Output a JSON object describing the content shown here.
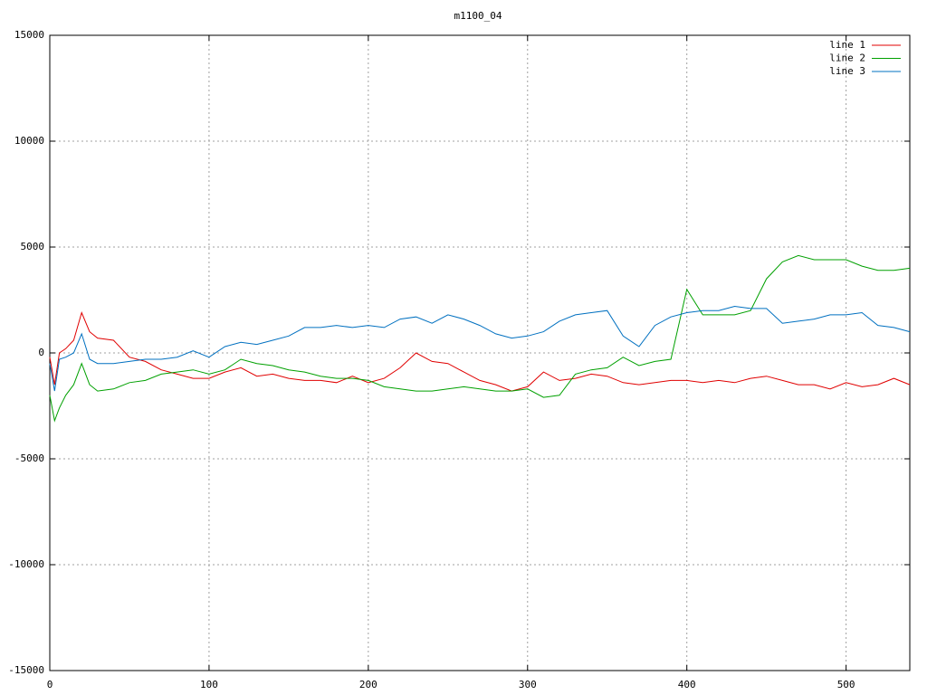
{
  "chart_data": {
    "type": "line",
    "title": "m1100_04",
    "x": [
      0,
      3,
      6,
      10,
      15,
      20,
      25,
      30,
      40,
      50,
      60,
      70,
      80,
      90,
      100,
      110,
      120,
      130,
      140,
      150,
      160,
      170,
      180,
      190,
      200,
      210,
      220,
      230,
      240,
      250,
      260,
      270,
      280,
      290,
      300,
      310,
      320,
      330,
      340,
      350,
      360,
      370,
      380,
      390,
      400,
      410,
      420,
      430,
      440,
      450,
      460,
      470,
      480,
      490,
      500,
      510,
      520,
      530,
      540
    ],
    "xlim": [
      0,
      540
    ],
    "xticks": [
      0,
      100,
      200,
      300,
      400,
      500
    ],
    "ylim": [
      -15000,
      15000
    ],
    "yticks": [
      -15000,
      -10000,
      -5000,
      0,
      5000,
      10000,
      15000
    ],
    "grid": true,
    "legend": "top-right",
    "series": [
      {
        "name": "line 1",
        "color": "#e00000",
        "values": [
          -200,
          -1500,
          0,
          200,
          600,
          1900,
          1000,
          700,
          600,
          -200,
          -400,
          -800,
          -1000,
          -1200,
          -1200,
          -900,
          -700,
          -1100,
          -1000,
          -1200,
          -1300,
          -1300,
          -1400,
          -1100,
          -1400,
          -1200,
          -700,
          0,
          -400,
          -500,
          -900,
          -1300,
          -1500,
          -1800,
          -1600,
          -900,
          -1300,
          -1200,
          -1000,
          -1100,
          -1400,
          -1500,
          -1400,
          -1300,
          -1300,
          -1400,
          -1300,
          -1400,
          -1200,
          -1100,
          -1300,
          -1500,
          -1500,
          -1700,
          -1400,
          -1600,
          -1500,
          -1200,
          -1500
        ]
      },
      {
        "name": "line 2",
        "color": "#00a000",
        "values": [
          -2000,
          -3200,
          -2600,
          -2000,
          -1500,
          -500,
          -1500,
          -1800,
          -1700,
          -1400,
          -1300,
          -1000,
          -900,
          -800,
          -1000,
          -800,
          -300,
          -500,
          -600,
          -800,
          -900,
          -1100,
          -1200,
          -1200,
          -1300,
          -1600,
          -1700,
          -1800,
          -1800,
          -1700,
          -1600,
          -1700,
          -1800,
          -1800,
          -1700,
          -2100,
          -2000,
          -1000,
          -800,
          -700,
          -200,
          -600,
          -400,
          -300,
          3000,
          1800,
          1800,
          1800,
          2000,
          3500,
          4300,
          4600,
          4400,
          4400,
          4400,
          4100,
          3900,
          3900,
          4000
        ]
      },
      {
        "name": "line 3",
        "color": "#0070c0",
        "values": [
          -500,
          -1800,
          -300,
          -200,
          0,
          900,
          -300,
          -500,
          -500,
          -400,
          -300,
          -300,
          -200,
          100,
          -200,
          300,
          500,
          400,
          600,
          800,
          1200,
          1200,
          1300,
          1200,
          1300,
          1200,
          1600,
          1700,
          1400,
          1800,
          1600,
          1300,
          900,
          700,
          800,
          1000,
          1500,
          1800,
          1900,
          2000,
          800,
          300,
          1300,
          1700,
          1900,
          2000,
          2000,
          2200,
          2100,
          2100,
          1400,
          1500,
          1600,
          1800,
          1800,
          1900,
          1300,
          1200,
          1000
        ]
      }
    ]
  }
}
